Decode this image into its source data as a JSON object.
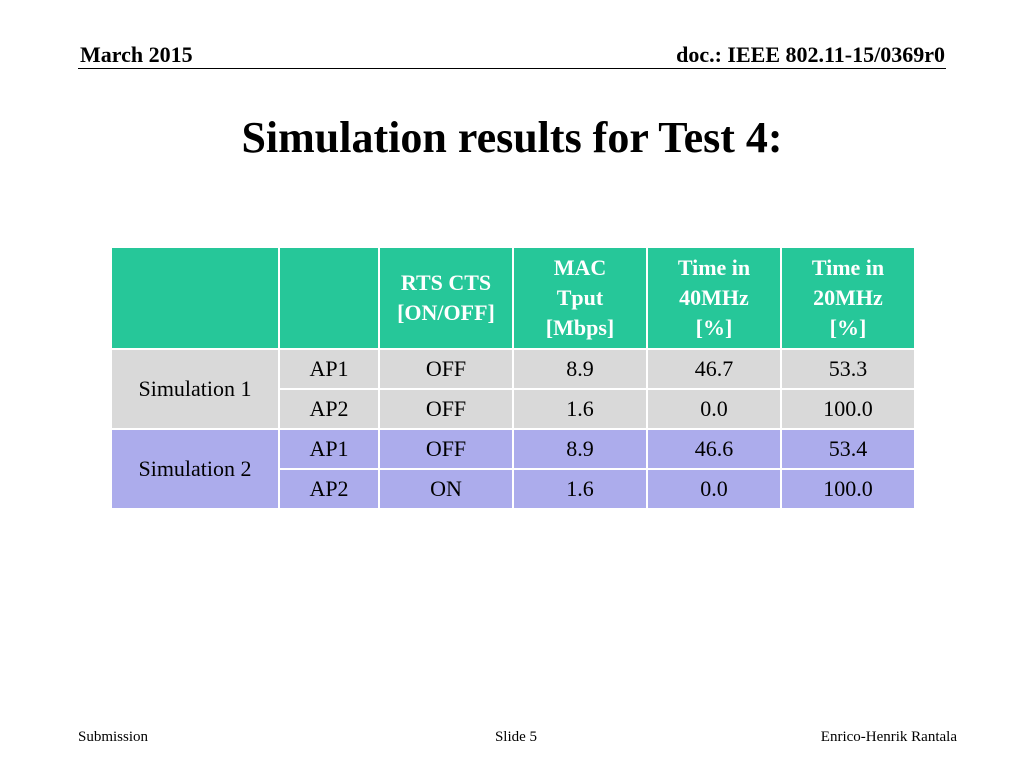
{
  "header": {
    "date": "March 2015",
    "doc": "doc.: IEEE 802.11-15/0369r0"
  },
  "title": "Simulation results for Test 4:",
  "table": {
    "columns": [
      "",
      "",
      "RTS CTS [ON/OFF]",
      "MAC Tput [Mbps]",
      "Time in 40MHz [%]",
      "Time in 20MHz [%]"
    ],
    "groups": [
      {
        "label": "Simulation 1",
        "color": "#d9d9d9",
        "rows": [
          {
            "ap": "AP1",
            "rts": "OFF",
            "tput": "8.9",
            "t40": "46.7",
            "t20": "53.3"
          },
          {
            "ap": "AP2",
            "rts": "OFF",
            "tput": "1.6",
            "t40": "0.0",
            "t20": "100.0"
          }
        ]
      },
      {
        "label": "Simulation 2",
        "color": "#acacec",
        "rows": [
          {
            "ap": "AP1",
            "rts": "OFF",
            "tput": "8.9",
            "t40": "46.6",
            "t20": "53.4"
          },
          {
            "ap": "AP2",
            "rts": "ON",
            "tput": "1.6",
            "t40": "0.0",
            "t20": "100.0"
          }
        ]
      }
    ],
    "header_color": "#26c799"
  },
  "footer": {
    "left": "Submission",
    "center": "Slide 5",
    "right": "Enrico-Henrik Rantala"
  }
}
